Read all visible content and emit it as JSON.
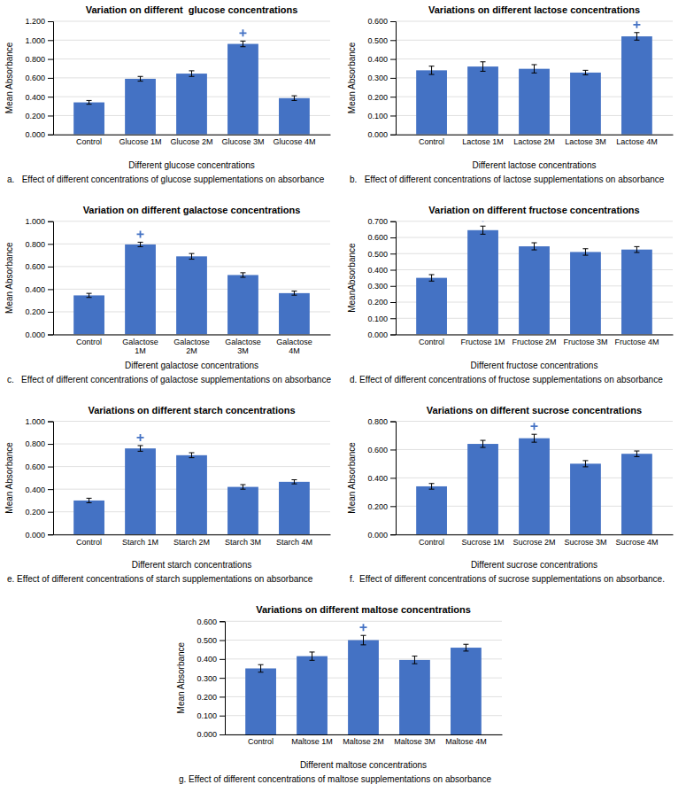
{
  "chart_data": [
    {
      "type": "bar",
      "title": "Variation on different  glucose concentrations",
      "xlabel": "Different glucose concentrations",
      "ylabel": "Mean Absorbance",
      "categories": [
        "Control",
        "Glucose 1M",
        "Glucose 2M",
        "Glucose 3M",
        "Glucose 4M"
      ],
      "values": [
        0.34,
        0.59,
        0.645,
        0.96,
        0.385
      ],
      "errors": [
        0.02,
        0.025,
        0.03,
        0.03,
        0.025
      ],
      "ylim": [
        0,
        1.2
      ],
      "yticks": [
        {
          "value": 0.0,
          "label": "0.000"
        },
        {
          "value": 0.2,
          "label": "0.200"
        },
        {
          "value": 0.4,
          "label": "0.400"
        },
        {
          "value": 0.6,
          "label": "0.600"
        },
        {
          "value": 0.8,
          "label": "0.800"
        },
        {
          "value": 1.0,
          "label": "1.000"
        },
        {
          "value": 1.2,
          "label": "1.200"
        }
      ],
      "star_idx": 3,
      "color": "#4472C4",
      "grid": true,
      "caption": "a.   Effect of different concentrations of glucose supplementations on absorbance"
    },
    {
      "type": "bar",
      "title": "Variations on different lactose concentrations",
      "xlabel": "Different lactose concentrations",
      "ylabel": "Mean Absorbance",
      "categories": [
        "Control",
        "Lactose 1M",
        "Lactose 2M",
        "Lactose 3M",
        "Lactose 4M"
      ],
      "values": [
        0.34,
        0.36,
        0.348,
        0.328,
        0.52
      ],
      "errors": [
        0.022,
        0.025,
        0.022,
        0.012,
        0.02
      ],
      "ylim": [
        0,
        0.6
      ],
      "yticks": [
        {
          "value": 0.0,
          "label": "0.000"
        },
        {
          "value": 0.1,
          "label": "0.100"
        },
        {
          "value": 0.2,
          "label": "0.200"
        },
        {
          "value": 0.3,
          "label": "0.300"
        },
        {
          "value": 0.4,
          "label": "0.400"
        },
        {
          "value": 0.5,
          "label": "0.500"
        },
        {
          "value": 0.6,
          "label": "0.600"
        }
      ],
      "star_idx": 4,
      "color": "#4472C4",
      "grid": true,
      "caption": "b.   Effect of different concentrations of lactose supplementations on absorbance"
    },
    {
      "type": "bar",
      "title": "Variation on different galactose concentrations",
      "xlabel": "Different galactose concentrations",
      "ylabel": "Mean Absorbance",
      "categories": [
        "Control",
        "Galactose\n1M",
        "Galactose\n2M",
        "Galactose\n3M",
        "Galactose\n4M"
      ],
      "values": [
        0.345,
        0.795,
        0.69,
        0.525,
        0.365
      ],
      "errors": [
        0.018,
        0.02,
        0.025,
        0.02,
        0.018
      ],
      "ylim": [
        0,
        1.0
      ],
      "yticks": [
        {
          "value": 0.0,
          "label": "0.000"
        },
        {
          "value": 0.2,
          "label": "0.200"
        },
        {
          "value": 0.4,
          "label": "0.400"
        },
        {
          "value": 0.6,
          "label": "0.600"
        },
        {
          "value": 0.8,
          "label": "0.800"
        },
        {
          "value": 1.0,
          "label": "1.000"
        }
      ],
      "star_idx": 1,
      "color": "#4472C4",
      "grid": true,
      "caption": "c.   Effect of different concentrations of galactose supplementations on absorbance"
    },
    {
      "type": "bar",
      "title": "Variation on different fructose concentrations",
      "xlabel": "Different fructose concentrations",
      "ylabel": "MeanAbsorbance",
      "categories": [
        "Control",
        "Fructose 1M",
        "Fructose 2M",
        "Fructose 3M",
        "Fructose 4M"
      ],
      "values": [
        0.35,
        0.645,
        0.545,
        0.51,
        0.525
      ],
      "errors": [
        0.02,
        0.025,
        0.022,
        0.02,
        0.018
      ],
      "ylim": [
        0,
        0.7
      ],
      "yticks": [
        {
          "value": 0.0,
          "label": "0.000"
        },
        {
          "value": 0.1,
          "label": "0.100"
        },
        {
          "value": 0.2,
          "label": "0.200"
        },
        {
          "value": 0.3,
          "label": "0.300"
        },
        {
          "value": 0.4,
          "label": "0.400"
        },
        {
          "value": 0.5,
          "label": "0.500"
        },
        {
          "value": 0.6,
          "label": "0.600"
        },
        {
          "value": 0.7,
          "label": "0.700"
        }
      ],
      "star_idx": 1,
      "color": "#4472C4",
      "grid": true,
      "caption": "d. Effect of different concentrations of fructose supplementations on absorbance"
    },
    {
      "type": "bar",
      "title": "Variations on different starch concentrations",
      "xlabel": "Different starch concentrations",
      "ylabel": "Mean Absorbance",
      "categories": [
        "Control",
        "Starch 1M",
        "Starch 2M",
        "Starch 3M",
        "Starch 4M"
      ],
      "values": [
        0.3,
        0.76,
        0.7,
        0.42,
        0.465
      ],
      "errors": [
        0.02,
        0.025,
        0.022,
        0.02,
        0.018
      ],
      "ylim": [
        0,
        1.0
      ],
      "yticks": [
        {
          "value": 0.0,
          "label": "0.000"
        },
        {
          "value": 0.2,
          "label": "0.200"
        },
        {
          "value": 0.4,
          "label": "0.400"
        },
        {
          "value": 0.6,
          "label": "0.600"
        },
        {
          "value": 0.8,
          "label": "0.800"
        },
        {
          "value": 1.0,
          "label": "1.000"
        }
      ],
      "star_idx": 1,
      "color": "#4472C4",
      "grid": true,
      "caption": "e. Effect of different concentrations of starch supplementations on absorbance"
    },
    {
      "type": "bar",
      "title": "Variations on different sucrose concentrations",
      "xlabel": "Different sucrose concentrations",
      "ylabel": "Mean Absorbance",
      "categories": [
        "Control",
        "Sucrose 1M",
        "Sucrose 2M",
        "Sucrose 3M",
        "Sucrose 4M"
      ],
      "values": [
        0.34,
        0.64,
        0.68,
        0.5,
        0.57
      ],
      "errors": [
        0.02,
        0.025,
        0.028,
        0.022,
        0.02
      ],
      "ylim": [
        0,
        0.8
      ],
      "yticks": [
        {
          "value": 0.0,
          "label": "0.000"
        },
        {
          "value": 0.2,
          "label": "0.200"
        },
        {
          "value": 0.4,
          "label": "0.400"
        },
        {
          "value": 0.6,
          "label": "0.600"
        },
        {
          "value": 0.8,
          "label": "0.800"
        }
      ],
      "star_idx": 2,
      "color": "#4472C4",
      "grid": true,
      "caption": "f.  Effect of different concentrations of sucrose supplementations on absorbance."
    },
    {
      "type": "bar",
      "title": "Variations on different maltose concentrations",
      "xlabel": "Different maltose concentrations",
      "ylabel": "Mean Absorbance",
      "categories": [
        "Control",
        "Maltose 1M",
        "Maltose 2M",
        "Maltose 3M",
        "Maltose 4M"
      ],
      "values": [
        0.35,
        0.415,
        0.5,
        0.395,
        0.46
      ],
      "errors": [
        0.02,
        0.022,
        0.025,
        0.02,
        0.018
      ],
      "ylim": [
        0,
        0.6
      ],
      "yticks": [
        {
          "value": 0.0,
          "label": "0.000"
        },
        {
          "value": 0.1,
          "label": "0.100"
        },
        {
          "value": 0.2,
          "label": "0.200"
        },
        {
          "value": 0.3,
          "label": "0.300"
        },
        {
          "value": 0.4,
          "label": "0.400"
        },
        {
          "value": 0.5,
          "label": "0.500"
        },
        {
          "value": 0.6,
          "label": "0.600"
        }
      ],
      "star_idx": 2,
      "color": "#4472C4",
      "grid": true,
      "caption": "g. Effect of different concentrations of maltose supplementations on absorbance"
    }
  ]
}
